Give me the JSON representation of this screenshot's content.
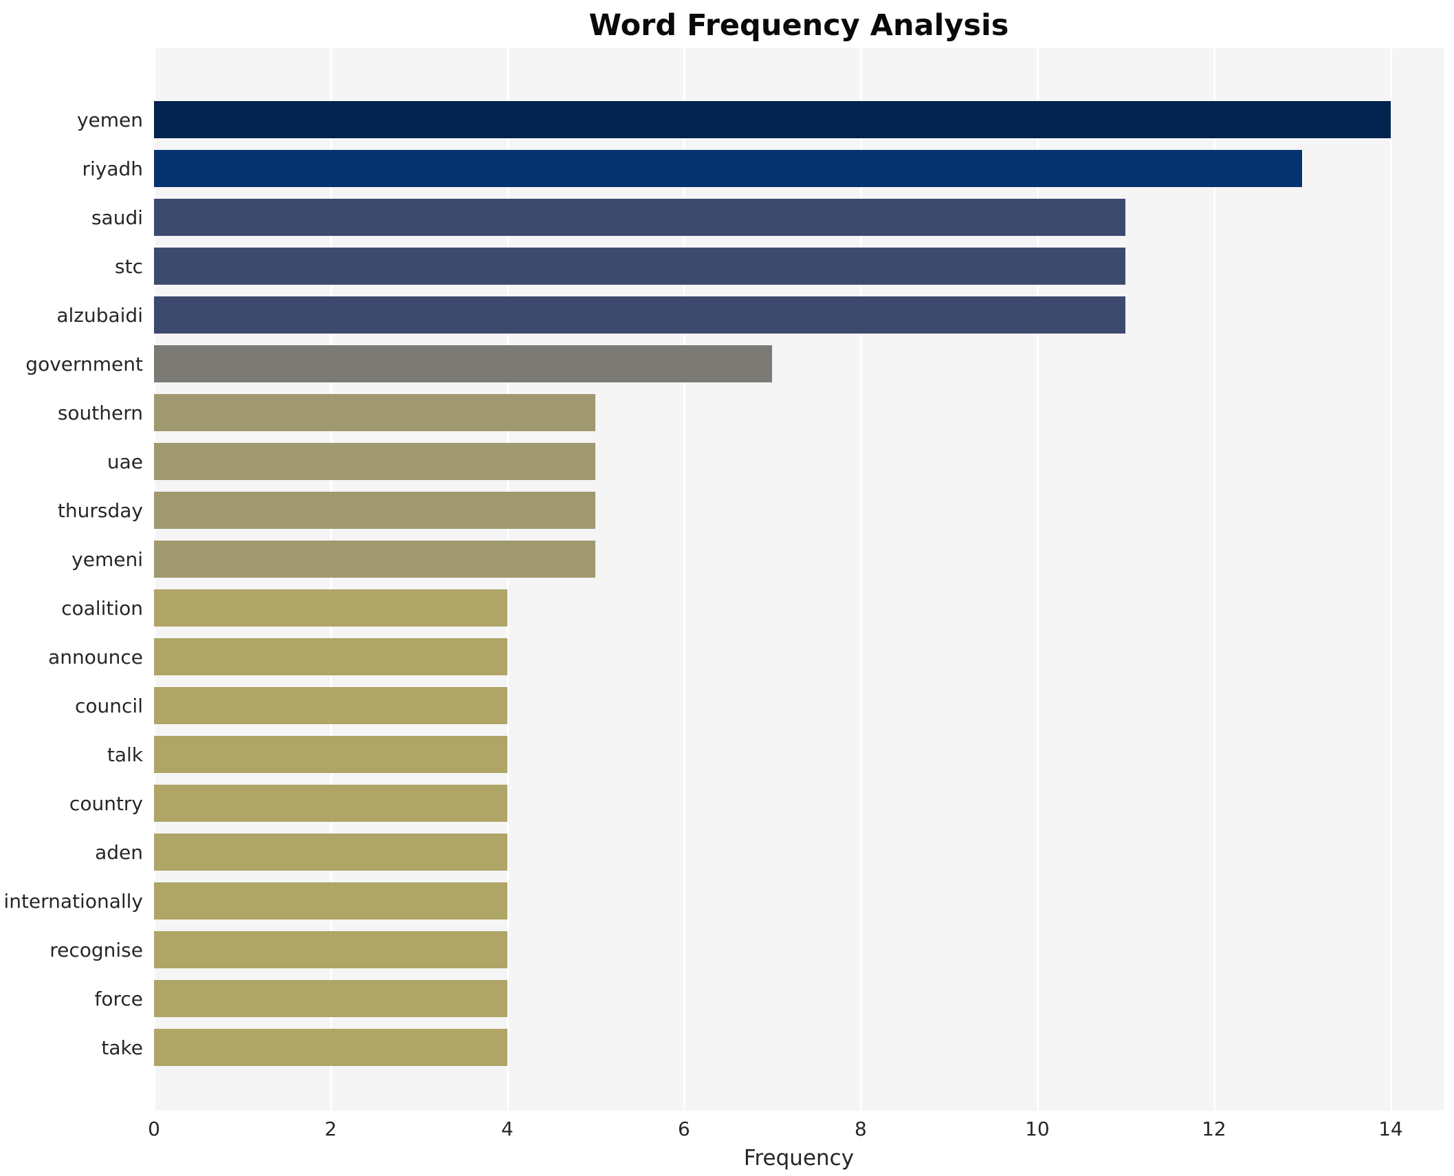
{
  "chart_data": {
    "type": "bar",
    "orientation": "horizontal",
    "title": "Word Frequency Analysis",
    "xlabel": "Frequency",
    "ylabel": "",
    "categories": [
      "yemen",
      "riyadh",
      "saudi",
      "stc",
      "alzubaidi",
      "government",
      "southern",
      "uae",
      "thursday",
      "yemeni",
      "coalition",
      "announce",
      "council",
      "talk",
      "country",
      "aden",
      "internationally",
      "recognise",
      "force",
      "take"
    ],
    "values": [
      14,
      13,
      11,
      11,
      11,
      7,
      5,
      5,
      5,
      5,
      4,
      4,
      4,
      4,
      4,
      4,
      4,
      4,
      4,
      4
    ],
    "bar_colors": [
      "#02234e",
      "#053370",
      "#3e4a6d",
      "#3e4a6d",
      "#3e4a6d",
      "#7b7a74",
      "#a0986f",
      "#a0986f",
      "#a0986f",
      "#a0986f",
      "#aea567",
      "#aea567",
      "#aea567",
      "#aea567",
      "#aea567",
      "#aea567",
      "#aea567",
      "#aea567",
      "#aea567",
      "#aea567"
    ],
    "xlim": [
      0,
      14.6
    ],
    "xticks": [
      0,
      2,
      4,
      6,
      8,
      10,
      12,
      14
    ],
    "grid": "vertical-white-lines",
    "legend": "none",
    "plot_bg_color": "#f5f5f6",
    "page_bg_color": "#ffffff",
    "gridline_color": "#ffffff",
    "text_color": "#262626",
    "title_color": "#0a0a0a"
  }
}
